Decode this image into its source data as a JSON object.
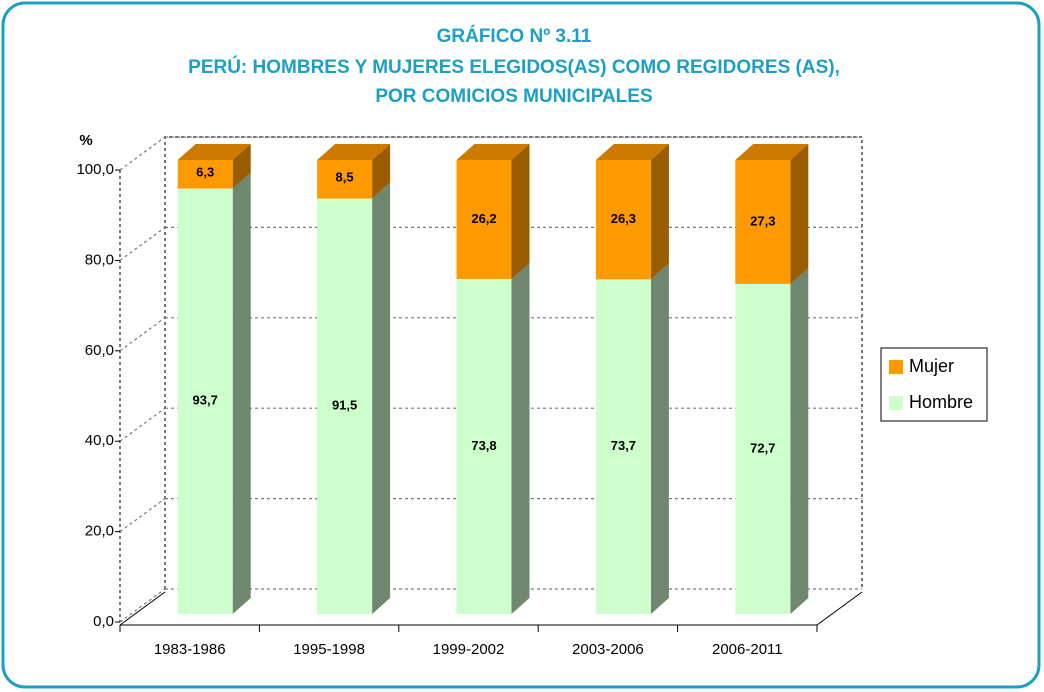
{
  "chart_data": {
    "type": "bar",
    "stacked": true,
    "title": "GRÁFICO Nº 3.11",
    "subtitle": [
      "PERÚ: HOMBRES Y MUJERES ELEGIDOS(AS) COMO REGIDORES (AS),",
      "POR COMICIOS MUNICIPALES"
    ],
    "ylabel": "%",
    "categories": [
      "1983-1986",
      "1995-1998",
      "1999-2002",
      "2003-2006",
      "2006-2011"
    ],
    "series": [
      {
        "name": "Hombre",
        "color": "#ccffcc",
        "side_color": "#6f876f",
        "top_color": "#b8e8b8",
        "values": [
          93.7,
          91.5,
          73.8,
          73.7,
          72.7
        ],
        "value_labels": [
          "93,7",
          "91,5",
          "73,8",
          "73,7",
          "72,7"
        ]
      },
      {
        "name": "Mujer",
        "color": "#ff9900",
        "side_color": "#995c00",
        "top_color": "#cc7a00",
        "values": [
          6.3,
          8.5,
          26.2,
          26.3,
          27.3
        ],
        "value_labels": [
          "6,3",
          "8,5",
          "26,2",
          "26,3",
          "27,3"
        ]
      }
    ],
    "ylim": [
      0,
      100
    ],
    "yticks": [
      {
        "value": 0,
        "label": "0,0"
      },
      {
        "value": 20,
        "label": "20,0"
      },
      {
        "value": 40,
        "label": "40,0"
      },
      {
        "value": 60,
        "label": "60,0"
      },
      {
        "value": 80,
        "label": "80,0"
      },
      {
        "value": 100,
        "label": "100,0"
      }
    ],
    "grid": true,
    "legend": "right"
  }
}
